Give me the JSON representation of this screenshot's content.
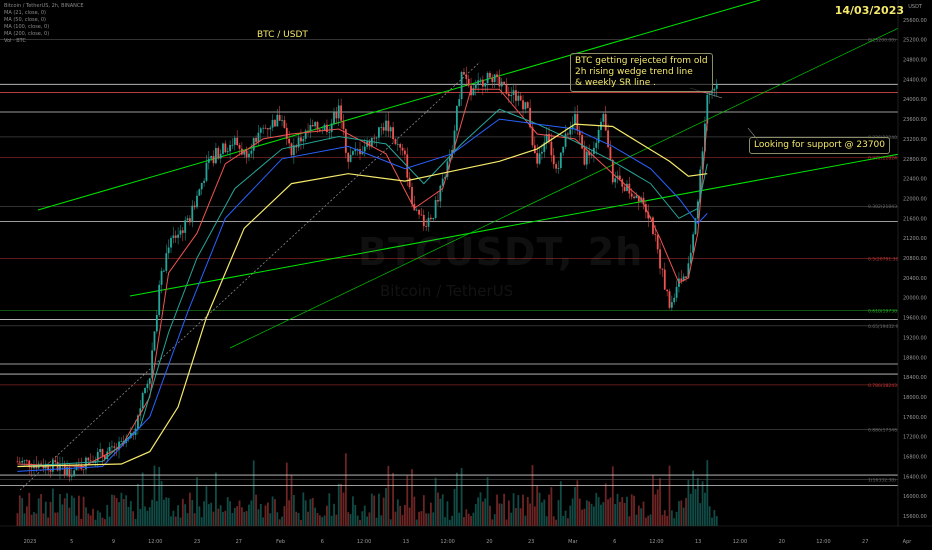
{
  "header": {
    "legend_lines": [
      "Bitcoin / TetherUS, 2h, BINANCE",
      "MA (21, close, 0)",
      "MA (50, close, 0)",
      "MA (100, close, 0)",
      "MA (200, close, 0)",
      "Vol · BTC"
    ],
    "title": "BTC / USDT",
    "date": "14/03/2023",
    "currency": "USDT"
  },
  "watermark": {
    "symbol": "BTCUSDT, 2h",
    "name": "Bitcoin / TetherUS"
  },
  "annotations": {
    "rejection": [
      "BTC getting rejected from old",
      "2h rising wedge trend line",
      "& weekly SR line ."
    ],
    "support": "Looking for support @ 23700"
  },
  "colors": {
    "background": "#000000",
    "up": "#26a69a",
    "down": "#ef5350",
    "ma21": "#ef5350",
    "ma50": "#26a69a",
    "ma100": "#2962ff",
    "ma200": "#f5e96b",
    "trendline": "#00e600",
    "annotation_text": "#f5e96b"
  },
  "chart_data": {
    "type": "line",
    "symbol": "BTCUSDT",
    "timeframe": "2h",
    "ylim": [
      15400,
      26000
    ],
    "y_ticks": [
      15600,
      16000,
      16400,
      16800,
      17200,
      17600,
      18000,
      18400,
      18800,
      19200,
      19600,
      20000,
      20400,
      20800,
      21200,
      21600,
      22000,
      22400,
      22800,
      23200,
      23600,
      24000,
      24400,
      24800,
      25200,
      25600
    ],
    "x_ticks": [
      "2023",
      "5",
      "9",
      "12:00",
      "23",
      "27",
      "Feb",
      "6",
      "12:00",
      "13",
      "12:00",
      "20",
      "23",
      "Mar",
      "6",
      "12:00",
      "13",
      "12:00",
      "20",
      "12:00",
      "27",
      "Apr"
    ],
    "price_labels": [
      {
        "price": 25200,
        "text": "0(25200.00)",
        "kind": "fib"
      },
      {
        "price": 24301.24,
        "text": "24301.24",
        "kind": "level"
      },
      {
        "price": 24137.96,
        "text": "24137.96",
        "kind": "last"
      },
      {
        "price": 23743.27,
        "text": "23743.27",
        "kind": "level"
      },
      {
        "price": 23240.59,
        "text": "0.236(23240.59)",
        "kind": "fib"
      },
      {
        "price": 22824.58,
        "text": "0.272(22824.58)",
        "kind": "fib"
      },
      {
        "price": 21843.79,
        "text": "0.382(21843.79)",
        "kind": "fib"
      },
      {
        "price": 21539.04,
        "text": "21539.04",
        "kind": "level"
      },
      {
        "price": 20791.3,
        "text": "0.5(20791.30)",
        "kind": "fib"
      },
      {
        "price": 19738.29,
        "text": "0.618(19738.29)",
        "kind": "fib"
      },
      {
        "price": 19559.94,
        "text": "19559.94",
        "kind": "level"
      },
      {
        "price": 19432.91,
        "text": "0.65(19432.91)",
        "kind": "fib"
      },
      {
        "price": 18665.0,
        "text": "18665.00",
        "kind": "level"
      },
      {
        "price": 18461.36,
        "text": "18461.36",
        "kind": "level"
      },
      {
        "price": 18243.24,
        "text": "0.786(18243.24)",
        "kind": "fib"
      },
      {
        "price": 17348.54,
        "text": "0.886(17348.54)",
        "kind": "fib"
      },
      {
        "price": 16426.0,
        "text": "16426.00",
        "kind": "level"
      },
      {
        "price": 16332.38,
        "text": "1(16332.38)",
        "kind": "fib"
      },
      {
        "price": 16213.85,
        "text": "16213.85",
        "kind": "level"
      }
    ],
    "price_path": [
      [
        1,
        16700
      ],
      [
        3,
        16650
      ],
      [
        5,
        16600
      ],
      [
        7,
        16500
      ],
      [
        9,
        16800
      ],
      [
        11,
        16900
      ],
      [
        13,
        17150
      ],
      [
        15,
        18500
      ],
      [
        16,
        20200
      ],
      [
        17,
        21100
      ],
      [
        19,
        21500
      ],
      [
        21,
        22600
      ],
      [
        22,
        22900
      ],
      [
        24,
        23150
      ],
      [
        25,
        22900
      ],
      [
        27,
        23400
      ],
      [
        29,
        23650
      ],
      [
        30,
        23000
      ],
      [
        32,
        23400
      ],
      [
        34,
        23450
      ],
      [
        35,
        23800
      ],
      [
        36,
        22800
      ],
      [
        38,
        23100
      ],
      [
        40,
        23500
      ],
      [
        42,
        22800
      ],
      [
        43,
        21700
      ],
      [
        44,
        21500
      ],
      [
        45,
        21700
      ],
      [
        46,
        22300
      ],
      [
        47,
        23000
      ],
      [
        48,
        24500
      ],
      [
        49,
        24100
      ],
      [
        51,
        24550
      ],
      [
        52,
        24250
      ],
      [
        54,
        24050
      ],
      [
        55,
        23800
      ],
      [
        56,
        22600
      ],
      [
        57,
        23400
      ],
      [
        58,
        22500
      ],
      [
        59,
        23300
      ],
      [
        60,
        23650
      ],
      [
        61,
        22800
      ],
      [
        62,
        23100
      ],
      [
        63,
        23600
      ],
      [
        64,
        22400
      ],
      [
        65,
        22300
      ],
      [
        66,
        22100
      ],
      [
        67,
        22050
      ],
      [
        68,
        21600
      ],
      [
        69,
        20700
      ],
      [
        70,
        19800
      ],
      [
        71,
        20300
      ],
      [
        72,
        20600
      ],
      [
        73,
        22000
      ],
      [
        74,
        24100
      ],
      [
        75,
        24300
      ]
    ],
    "series": [
      {
        "name": "MA (21, close, 0)",
        "values": [
          [
            1,
            16650
          ],
          [
            8,
            16600
          ],
          [
            12,
            17000
          ],
          [
            15,
            18000
          ],
          [
            17,
            20500
          ],
          [
            20,
            21300
          ],
          [
            23,
            22700
          ],
          [
            27,
            23200
          ],
          [
            30,
            23300
          ],
          [
            35,
            23400
          ],
          [
            40,
            22900
          ],
          [
            43,
            21800
          ],
          [
            46,
            22200
          ],
          [
            49,
            24200
          ],
          [
            52,
            24200
          ],
          [
            56,
            23300
          ],
          [
            60,
            23200
          ],
          [
            64,
            22500
          ],
          [
            67,
            22000
          ],
          [
            69,
            21200
          ],
          [
            71,
            20300
          ],
          [
            72,
            20400
          ],
          [
            73,
            21300
          ],
          [
            74,
            23600
          ]
        ]
      },
      {
        "name": "MA (50, close, 0)",
        "values": [
          [
            1,
            16600
          ],
          [
            10,
            16700
          ],
          [
            14,
            17400
          ],
          [
            17,
            19300
          ],
          [
            20,
            20800
          ],
          [
            24,
            22200
          ],
          [
            29,
            23000
          ],
          [
            35,
            23250
          ],
          [
            40,
            23100
          ],
          [
            44,
            22300
          ],
          [
            48,
            23100
          ],
          [
            52,
            23800
          ],
          [
            56,
            23500
          ],
          [
            60,
            23150
          ],
          [
            64,
            22750
          ],
          [
            68,
            22300
          ],
          [
            71,
            21600
          ],
          [
            73,
            21800
          ],
          [
            74,
            22700
          ]
        ]
      },
      {
        "name": "MA (100, close, 0)",
        "values": [
          [
            1,
            16500
          ],
          [
            10,
            16600
          ],
          [
            15,
            17600
          ],
          [
            19,
            19700
          ],
          [
            23,
            21600
          ],
          [
            29,
            22800
          ],
          [
            36,
            23050
          ],
          [
            42,
            22600
          ],
          [
            47,
            22900
          ],
          [
            52,
            23600
          ],
          [
            56,
            23500
          ],
          [
            60,
            23400
          ],
          [
            64,
            23050
          ],
          [
            68,
            22600
          ],
          [
            71,
            22000
          ],
          [
            73,
            21500
          ],
          [
            74,
            21700
          ]
        ]
      },
      {
        "name": "MA (200, close, 0)",
        "values": [
          [
            1,
            16600
          ],
          [
            12,
            16650
          ],
          [
            15,
            16900
          ],
          [
            18,
            17800
          ],
          [
            21,
            19600
          ],
          [
            25,
            21400
          ],
          [
            30,
            22300
          ],
          [
            36,
            22500
          ],
          [
            42,
            22350
          ],
          [
            47,
            22550
          ],
          [
            52,
            22750
          ],
          [
            56,
            23000
          ],
          [
            60,
            23500
          ],
          [
            64,
            23450
          ],
          [
            67,
            23100
          ],
          [
            70,
            22750
          ],
          [
            72,
            22450
          ],
          [
            74,
            22500
          ]
        ]
      }
    ]
  }
}
